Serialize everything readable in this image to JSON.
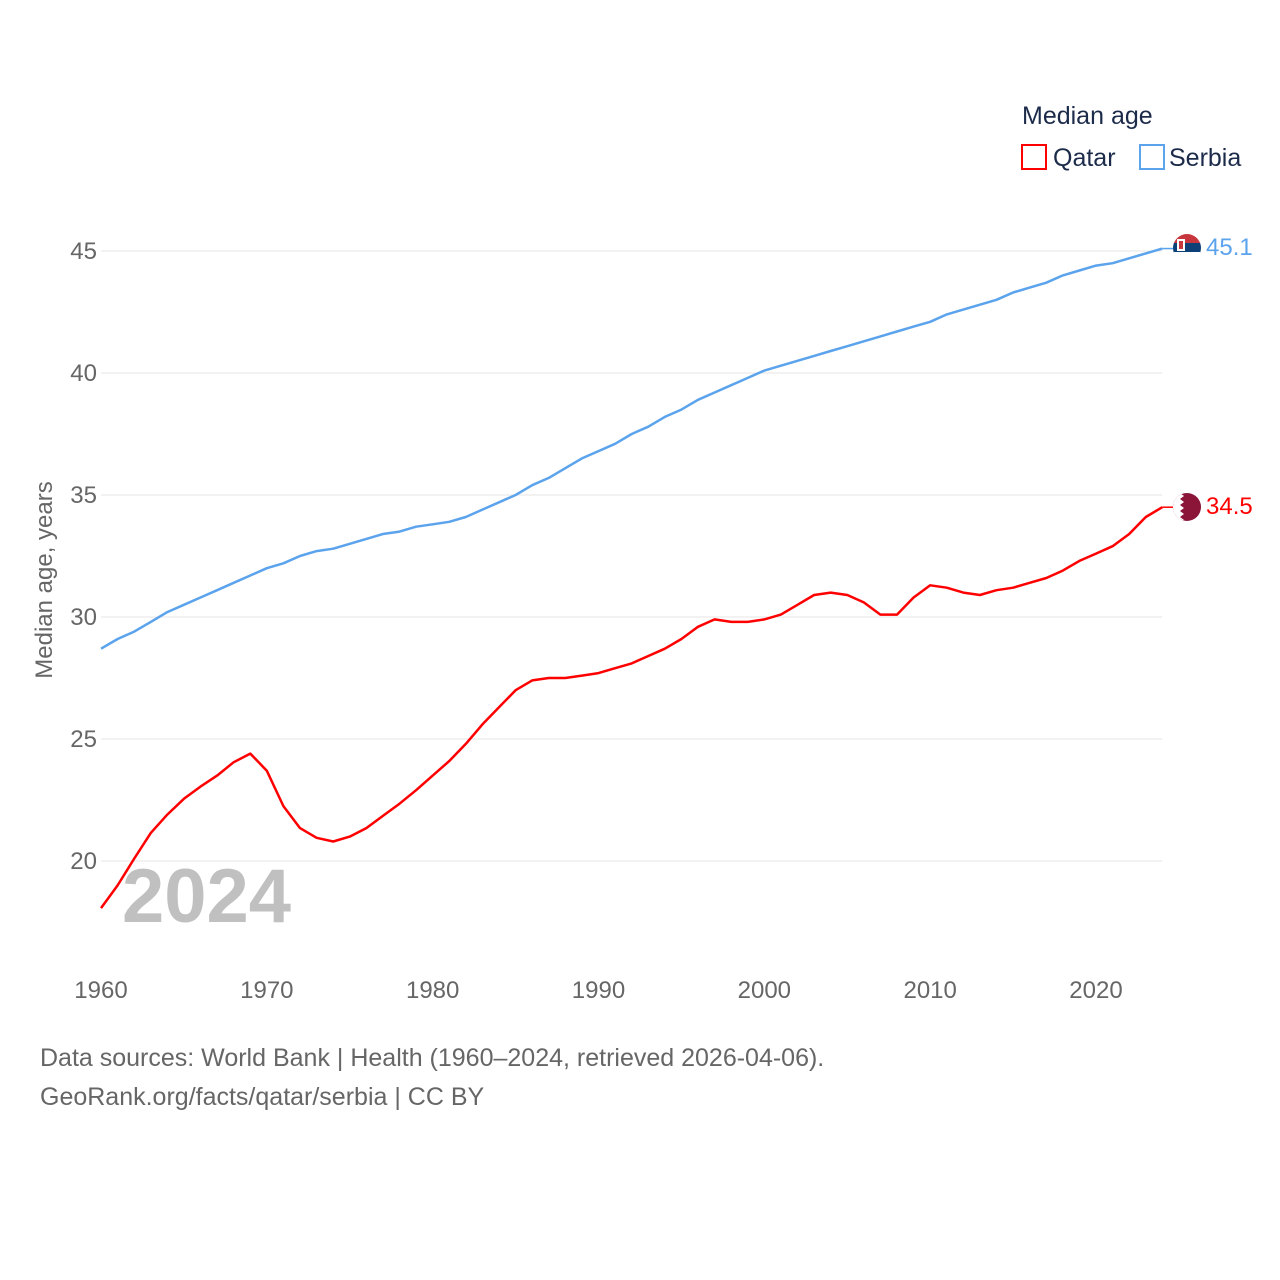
{
  "chart_data": {
    "type": "line",
    "title": "",
    "xlabel": "",
    "ylabel": "Median age, years",
    "year_watermark": "2024",
    "xlim": [
      1960,
      2024
    ],
    "ylim": [
      17,
      46
    ],
    "x_ticks": [
      "1960",
      "1970",
      "1980",
      "1990",
      "2000",
      "2010",
      "2020"
    ],
    "y_ticks": [
      "20",
      "25",
      "30",
      "35",
      "40",
      "45"
    ],
    "grid": true,
    "legend": {
      "title": "Median age",
      "placement": "top-right"
    },
    "x": [
      1960,
      1961,
      1962,
      1963,
      1964,
      1965,
      1966,
      1967,
      1968,
      1969,
      1970,
      1971,
      1972,
      1973,
      1974,
      1975,
      1976,
      1977,
      1978,
      1979,
      1980,
      1981,
      1982,
      1983,
      1984,
      1985,
      1986,
      1987,
      1988,
      1989,
      1990,
      1991,
      1992,
      1993,
      1994,
      1995,
      1996,
      1997,
      1998,
      1999,
      2000,
      2001,
      2002,
      2003,
      2004,
      2005,
      2006,
      2007,
      2008,
      2009,
      2010,
      2011,
      2012,
      2013,
      2014,
      2015,
      2016,
      2017,
      2018,
      2019,
      2020,
      2021,
      2022,
      2023,
      2024
    ],
    "series": [
      {
        "name": "Qatar",
        "color": "#ff0000",
        "end_label": "34.5",
        "values": [
          18.07,
          19.0,
          20.1,
          21.15,
          21.9,
          22.55,
          23.05,
          23.5,
          24.05,
          24.4,
          23.7,
          22.25,
          21.35,
          20.95,
          20.8,
          21.0,
          21.35,
          21.85,
          22.35,
          22.9,
          23.5,
          24.1,
          24.8,
          25.6,
          26.3,
          27.0,
          27.4,
          27.5,
          27.5,
          27.6,
          27.7,
          27.9,
          28.1,
          28.4,
          28.7,
          29.1,
          29.6,
          29.9,
          29.8,
          29.8,
          29.9,
          30.1,
          30.5,
          30.9,
          31.0,
          30.9,
          30.6,
          30.1,
          30.1,
          30.8,
          31.3,
          31.2,
          31.0,
          30.9,
          31.1,
          31.2,
          31.4,
          31.6,
          31.9,
          32.3,
          32.6,
          32.9,
          33.4,
          34.1,
          34.5
        ]
      },
      {
        "name": "Serbia",
        "color": "#5ba3ec",
        "end_label": "45.1",
        "values": [
          28.7,
          29.1,
          29.4,
          29.8,
          30.2,
          30.5,
          30.8,
          31.1,
          31.4,
          31.7,
          32.0,
          32.2,
          32.5,
          32.7,
          32.8,
          33.0,
          33.2,
          33.4,
          33.5,
          33.7,
          33.8,
          33.9,
          34.1,
          34.4,
          34.7,
          35.0,
          35.4,
          35.7,
          36.1,
          36.5,
          36.8,
          37.1,
          37.5,
          37.8,
          38.2,
          38.5,
          38.9,
          39.2,
          39.5,
          39.8,
          40.1,
          40.3,
          40.5,
          40.7,
          40.9,
          41.1,
          41.3,
          41.5,
          41.7,
          41.9,
          42.1,
          42.4,
          42.6,
          42.8,
          43.0,
          43.3,
          43.5,
          43.7,
          44.0,
          44.2,
          44.4,
          44.5,
          44.7,
          44.9,
          45.1
        ]
      }
    ]
  },
  "footer": {
    "line1": "Data sources: World Bank | Health (1960–2024, retrieved 2026-04-06).",
    "line2": "GeoRank.org/facts/qatar/serbia | CC BY"
  }
}
